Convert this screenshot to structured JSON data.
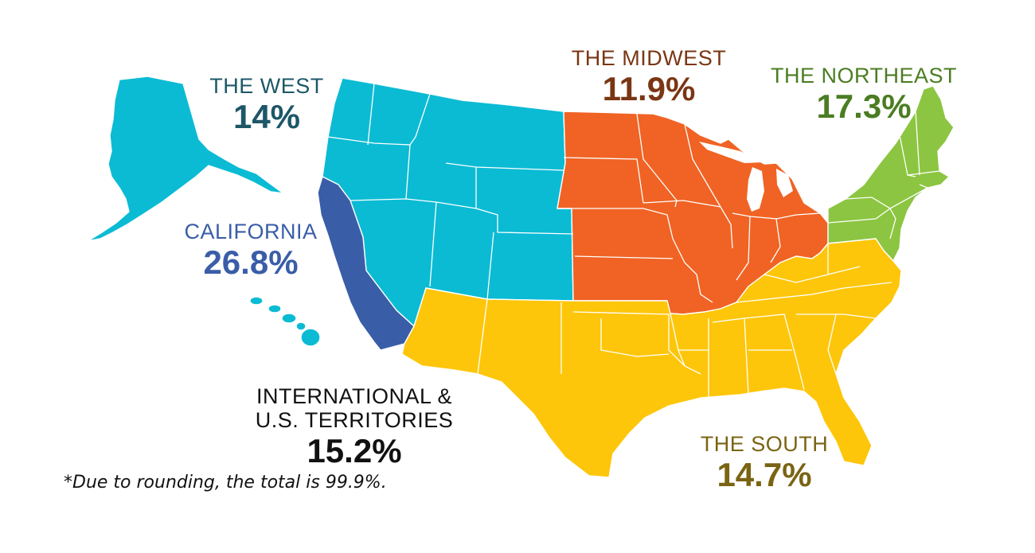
{
  "colors": {
    "west": "#0bbbd4",
    "california": "#3a5da8",
    "midwest": "#f06324",
    "northeast": "#8cc541",
    "south": "#fec60a",
    "west_text": "#1d5768",
    "california_text": "#3a5da8",
    "midwest_text": "#7a3614",
    "northeast_text": "#4b7d22",
    "south_text": "#7a6413",
    "international_text": "#111111"
  },
  "regions": {
    "west": {
      "name": "THE WEST",
      "value": "14%"
    },
    "california": {
      "name": "CALIFORNIA",
      "value": "26.8%"
    },
    "midwest": {
      "name": "THE MIDWEST",
      "value": "11.9%"
    },
    "northeast": {
      "name": "THE NORTHEAST",
      "value": "17.3%"
    },
    "south": {
      "name": "THE SOUTH",
      "value": "14.7%"
    },
    "international": {
      "name_line1": "INTERNATIONAL &",
      "name_line2": "U.S. TERRITORIES",
      "value": "15.2%"
    }
  },
  "footnote": "*Due to rounding, the total is 99.9%."
}
